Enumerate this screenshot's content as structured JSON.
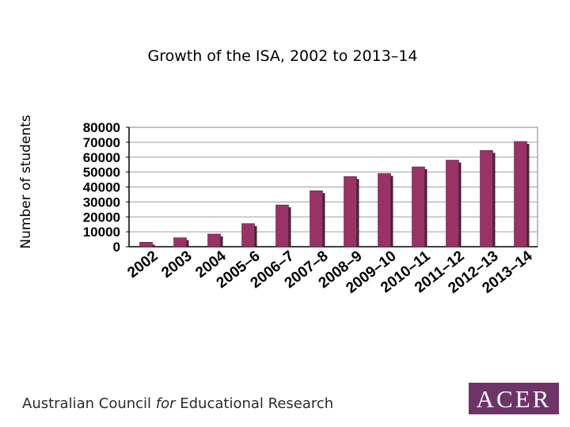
{
  "chart_data": {
    "type": "bar",
    "title": "Growth of the ISA, 2002 to 2013–14",
    "ylabel": "Number of students",
    "xlabel": "",
    "ylim": [
      0,
      80000
    ],
    "yticks": [
      "80000",
      "70000",
      "60000",
      "50000",
      "40000",
      "30000",
      "20000",
      "10000",
      "0"
    ],
    "grid": true,
    "bar_color": "#993366",
    "categories": [
      "2002",
      "2003",
      "2004",
      "2005–6",
      "2006–7",
      "2007–8",
      "2008–9",
      "2009–10",
      "2010–11",
      "2011–12",
      "2012–13",
      "2013–14"
    ],
    "values": [
      3000,
      6000,
      8500,
      15500,
      28000,
      37500,
      47000,
      49000,
      53500,
      58000,
      64500,
      70500
    ]
  },
  "footer": {
    "org_part1": "Australian Council ",
    "org_for": "for",
    "org_part2": " Educational Research"
  },
  "logo": {
    "text": "ACER",
    "color": "#6e3468"
  }
}
